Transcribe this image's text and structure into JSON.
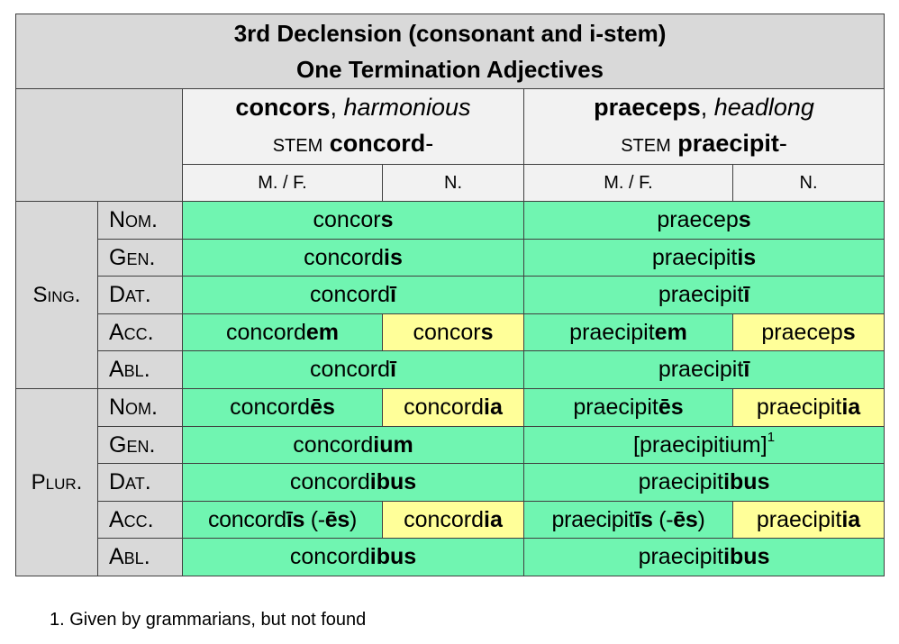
{
  "title": {
    "line1": "3rd Declension (consonant and i-stem)",
    "line2": "One Termination Adjectives"
  },
  "words": [
    {
      "lemma": "concors",
      "sep": ", ",
      "gloss": "harmonious",
      "stem_label": "stem",
      "stem": "concord",
      "stem_suffix": "-"
    },
    {
      "lemma": "praeceps",
      "sep": ", ",
      "gloss": "headlong",
      "stem_label": "stem",
      "stem": "praecipit",
      "stem_suffix": "-"
    }
  ],
  "gender_headers": {
    "mf_a": "m. / f.",
    "n_a": "n.",
    "mf_b": "m. /  f.",
    "n_b": "n."
  },
  "numbers": {
    "sing": "Sing.",
    "plur": "Plur."
  },
  "cases": {
    "nom": "Nom.",
    "gen": "Gen.",
    "dat": "Dat.",
    "acc": "Acc.",
    "abl": "Abl."
  },
  "forms": {
    "sing_nom_1": {
      "stem": "concor",
      "end": "s"
    },
    "sing_nom_2": {
      "stem": "praecep",
      "end": "s"
    },
    "sing_gen_1": {
      "stem": "concord",
      "end": "is"
    },
    "sing_gen_2": {
      "stem": "praecipit",
      "end": "is"
    },
    "sing_dat_1": {
      "stem": "concord",
      "end": "ī"
    },
    "sing_dat_2": {
      "stem": "praecipit",
      "end": "ī"
    },
    "sing_acc_1_mf": {
      "stem": "concord",
      "end": "em"
    },
    "sing_acc_1_n": {
      "stem": "concor",
      "end": "s"
    },
    "sing_acc_2_mf": {
      "stem": "praecipit",
      "end": "em"
    },
    "sing_acc_2_n": {
      "stem": "praecep",
      "end": "s"
    },
    "sing_abl_1": {
      "stem": "concord",
      "end": "ī"
    },
    "sing_abl_2": {
      "stem": "praecipit",
      "end": "ī"
    },
    "plur_nom_1_mf": {
      "stem": "concord",
      "end": "ēs"
    },
    "plur_nom_1_n": {
      "stem": "concord",
      "end": "ia"
    },
    "plur_nom_2_mf": {
      "stem": "praecipit",
      "end": "ēs"
    },
    "plur_nom_2_n": {
      "stem": "praecipit",
      "end": "ia"
    },
    "plur_gen_1": {
      "stem": "concord",
      "end": "ium"
    },
    "plur_gen_2": {
      "text": "[praecipitium]",
      "note": "1"
    },
    "plur_dat_1": {
      "stem": "concord",
      "end": "ibus"
    },
    "plur_dat_2": {
      "stem": "praecipit",
      "end": "ibus"
    },
    "plur_acc_1_mf": {
      "stem": "concord",
      "end": "īs",
      "alt_open": " (-",
      "alt": "ēs",
      "alt_close": ")"
    },
    "plur_acc_1_n": {
      "stem": "concord",
      "end": "ia"
    },
    "plur_acc_2_mf": {
      "stem": "praecipit",
      "end": "īs",
      "alt_open": " (-",
      "alt": "ēs",
      "alt_close": ")"
    },
    "plur_acc_2_n": {
      "stem": "praecipit",
      "end": "ia"
    },
    "plur_abl_1": {
      "stem": "concord",
      "end": "ibus"
    },
    "plur_abl_2": {
      "stem": "praecipit",
      "end": "ibus"
    }
  },
  "footnote": "1.   Given by grammarians, but not found",
  "colors": {
    "header": "#d9d9d9",
    "subheader": "#f2f2f2",
    "shared_form": "#70f5b1",
    "neuter_form": "#ffff99",
    "border": "#404040"
  }
}
